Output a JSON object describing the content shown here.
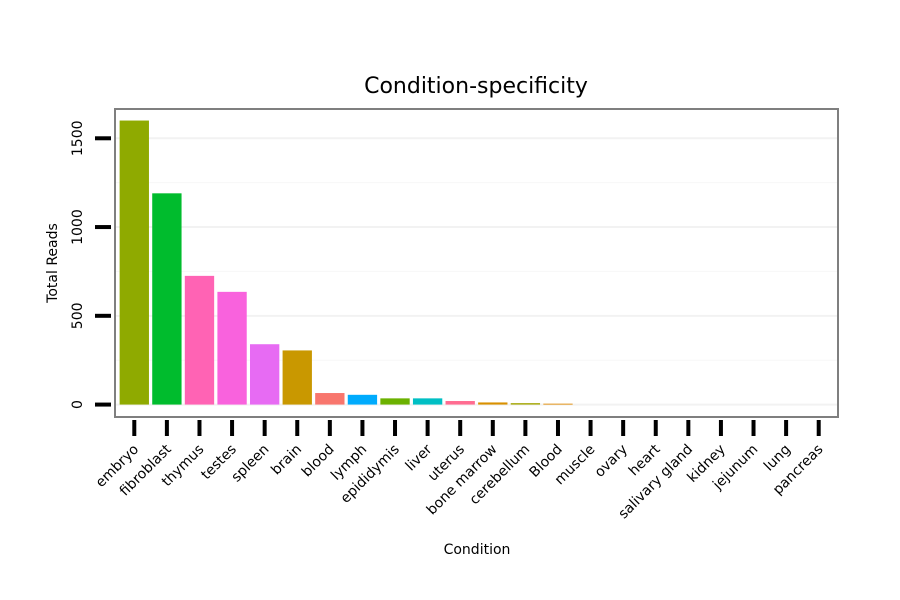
{
  "chart_data": {
    "type": "bar",
    "title": "Condition-specificity",
    "xlabel": "Condition",
    "ylabel": "Total Reads",
    "ylim": [
      -70,
      1665
    ],
    "yticks": [
      0,
      500,
      1000,
      1500
    ],
    "grid": true,
    "legend": "none",
    "categories": [
      "embryo",
      "fibroblast",
      "thymus",
      "testes",
      "spleen",
      "brain",
      "blood",
      "lymph",
      "epididymis",
      "liver",
      "uterus",
      "bone marrow",
      "cerebellum",
      "Blood",
      "muscle",
      "ovary",
      "heart",
      "salivary gland",
      "kidney",
      "jejunum",
      "lung",
      "pancreas"
    ],
    "values": [
      1600,
      1190,
      725,
      635,
      340,
      305,
      65,
      55,
      35,
      35,
      20,
      12,
      8,
      5,
      0,
      0,
      0,
      0,
      0,
      0,
      0,
      0
    ],
    "colors": [
      "#8FAA00",
      "#00BC2D",
      "#FF63B4",
      "#F962DD",
      "#E76BF3",
      "#C99800",
      "#F8766D",
      "#00ABFD",
      "#6BB100",
      "#00BFC4",
      "#FF6C91",
      "#D89000",
      "#A3A500",
      "#E18A00",
      "#00C08B",
      "#00BBDA",
      "#00B0F6",
      "#9590FF",
      "#C77CFF",
      "#FF62BC",
      "#F8766D",
      "#00BA38"
    ]
  }
}
